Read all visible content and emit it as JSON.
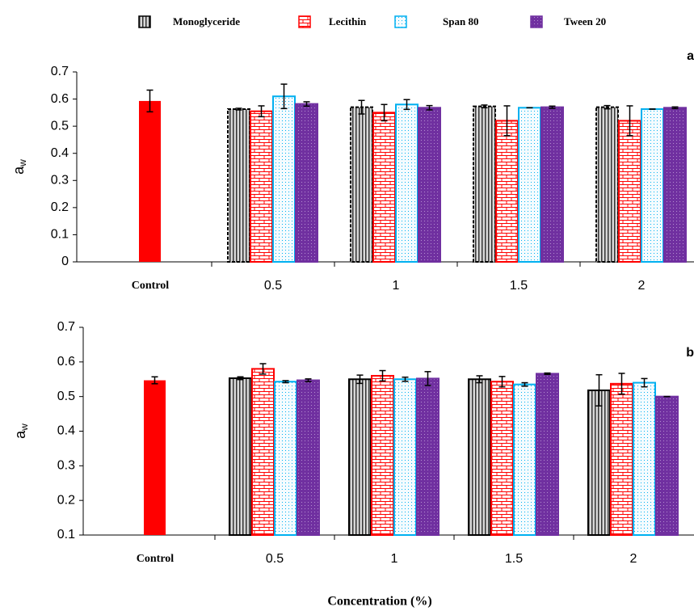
{
  "chart_data": [
    {
      "type": "bar",
      "panel_label": "a",
      "ylabel": "a",
      "ylabel_subscript": "w",
      "categories": [
        "Control",
        "0.5",
        "1",
        "1.5",
        "2"
      ],
      "ylim": [
        0,
        0.7
      ],
      "yticks": [
        0,
        0.1,
        0.2,
        0.3,
        0.4,
        0.5,
        0.6,
        0.7
      ],
      "series": [
        {
          "color": "#ff0000",
          "pattern": "solid",
          "values": [
            0.593,
            null,
            null,
            null,
            null
          ],
          "errors": [
            0.04,
            null,
            null,
            null,
            null
          ]
        },
        {
          "name": "Monoglyceride",
          "color": "#000000",
          "pattern": "stripes",
          "dashed": true,
          "values": [
            null,
            0.563,
            0.57,
            0.573,
            0.57
          ],
          "errors": [
            null,
            0.003,
            0.025,
            0.005,
            0.006
          ]
        },
        {
          "name": "Lecithin",
          "color": "#ff0000",
          "pattern": "brick",
          "values": [
            null,
            0.555,
            0.55,
            0.52,
            0.52
          ],
          "errors": [
            null,
            0.02,
            0.03,
            0.055,
            0.055
          ]
        },
        {
          "name": "Span 80",
          "color": "#00b0f0",
          "pattern": "dots",
          "values": [
            null,
            0.61,
            0.58,
            0.568,
            0.563
          ],
          "errors": [
            null,
            0.045,
            0.018,
            0,
            0
          ]
        },
        {
          "name": "Tween 20",
          "color": "#7030a0",
          "pattern": "dense",
          "values": [
            null,
            0.582,
            0.568,
            0.57,
            0.568
          ],
          "errors": [
            null,
            0.008,
            0.008,
            0.004,
            0.003
          ]
        }
      ]
    },
    {
      "type": "bar",
      "panel_label": "b",
      "ylabel": "a",
      "ylabel_subscript": "w",
      "xlabel": "Concentration (%)",
      "categories": [
        "Control",
        "0.5",
        "1",
        "1.5",
        "2"
      ],
      "ylim": [
        0.1,
        0.7
      ],
      "yticks": [
        0.1,
        0.2,
        0.3,
        0.4,
        0.5,
        0.6,
        0.7
      ],
      "series": [
        {
          "color": "#ff0000",
          "pattern": "solid",
          "values": [
            0.547,
            null,
            null,
            null,
            null
          ],
          "errors": [
            0.01,
            null,
            null,
            null,
            null
          ]
        },
        {
          "color": "#000000",
          "pattern": "stripes",
          "values": [
            null,
            0.553,
            0.55,
            0.55,
            0.518
          ],
          "errors": [
            null,
            0.004,
            0.012,
            0.01,
            0.045
          ]
        },
        {
          "color": "#ff0000",
          "pattern": "brick",
          "values": [
            null,
            0.58,
            0.56,
            0.543,
            0.537
          ],
          "errors": [
            null,
            0.015,
            0.015,
            0.015,
            0.03
          ]
        },
        {
          "color": "#00b0f0",
          "pattern": "dots",
          "values": [
            null,
            0.543,
            0.55,
            0.535,
            0.54
          ],
          "errors": [
            null,
            0.003,
            0.006,
            0.005,
            0.012
          ]
        },
        {
          "color": "#7030a0",
          "pattern": "dense",
          "values": [
            null,
            0.547,
            0.552,
            0.566,
            0.5
          ],
          "errors": [
            null,
            0.004,
            0.02,
            0.002,
            0
          ]
        }
      ]
    }
  ]
}
